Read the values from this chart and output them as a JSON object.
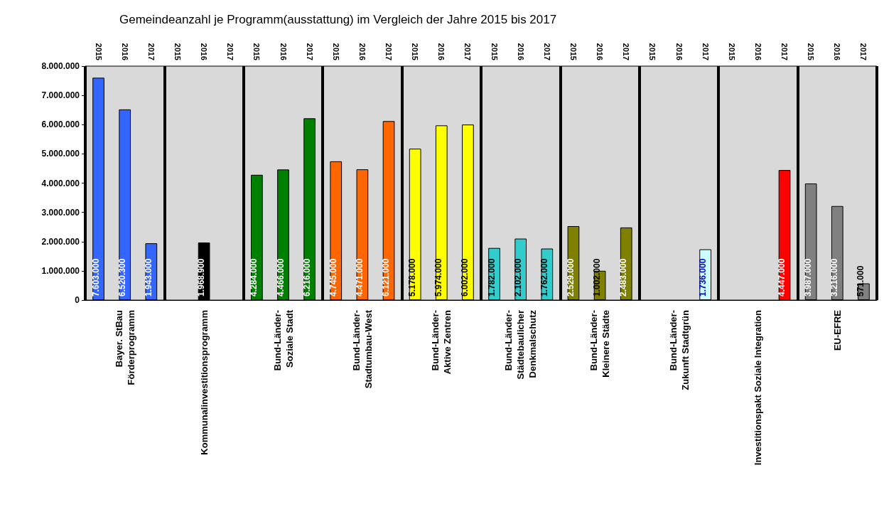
{
  "chart_data": {
    "type": "bar",
    "title": "Gemeindeanzahl je Programm(ausstattung) im Vergleich der Jahre 2015 bis 2017",
    "categories": [
      "Bayer. StBau\nFörderprogramm",
      "Kommunalinvestitionsprogramm",
      "Bund-Länder-\nSoziale Stadt",
      "Bund-Länder-\nStadtumbau-West",
      "Bund-Länder-\nAktive Zentren",
      "Bund-Länder-\nStädtebaulicher\nDenkmalschutz",
      "Bund-Länder-\nKleinere Städte",
      "Bund-Länder-\nZukunft Stadtgrün",
      "Investitionspakt Soziale Integration",
      "EU-EFRE"
    ],
    "series": [
      {
        "name": "2015",
        "colors": [
          "#3366ff",
          "#000000",
          "#008000",
          "#ff6600",
          "#ffff00",
          "#33cccc",
          "#808000",
          "#ccffff",
          "#ff0000",
          "#808080"
        ],
        "values": [
          7603000,
          null,
          4284000,
          4745000,
          5178000,
          1782000,
          2529000,
          null,
          null,
          3987000
        ],
        "value_labels": [
          "7.603.000",
          null,
          "4.284.000",
          "4.745.000",
          "5.178.000",
          "1.782.000",
          "2.529.000",
          null,
          null,
          "3.987.000"
        ]
      },
      {
        "name": "2016",
        "colors": [
          "#3366ff",
          "#000000",
          "#008000",
          "#ff6600",
          "#ffff00",
          "#33cccc",
          "#808000",
          "#ccffff",
          "#ff0000",
          "#808080"
        ],
        "values": [
          6520300,
          1968900,
          4466000,
          4471000,
          5974000,
          2102000,
          1002000,
          null,
          null,
          3216000
        ],
        "value_labels": [
          "6.520.300",
          "1.968.900",
          "4.466.000",
          "4.471.000",
          "5.974.000",
          "2.102.000",
          "1.002.000",
          null,
          null,
          "3.216.000"
        ]
      },
      {
        "name": "2017",
        "colors": [
          "#3366ff",
          "#000000",
          "#008000",
          "#ff6600",
          "#ffff00",
          "#33cccc",
          "#808000",
          "#ccffff",
          "#ff0000",
          "#808080"
        ],
        "values": [
          1943000,
          null,
          6216000,
          6121000,
          6002000,
          1762000,
          2483000,
          1736000,
          4447000,
          571000
        ],
        "value_labels": [
          "1.943.000",
          null,
          "6.216.000",
          "6.121.000",
          "6.002.000",
          "1.762.000",
          "2.483.000",
          "1.736.000",
          "4.447.000",
          "571.000"
        ]
      }
    ],
    "ylim": [
      0,
      8000000
    ],
    "yticks": [
      {
        "value": 0,
        "label": "0"
      },
      {
        "value": 1000000,
        "label": "1.000.000"
      },
      {
        "value": 2000000,
        "label": "2.000.000"
      },
      {
        "value": 3000000,
        "label": "3.000.000"
      },
      {
        "value": 4000000,
        "label": "4.000.000"
      },
      {
        "value": 5000000,
        "label": "5.000.000"
      },
      {
        "value": 6000000,
        "label": "6.000.000"
      },
      {
        "value": 7000000,
        "label": "7.000.000"
      },
      {
        "value": 8000000,
        "label": "8.000.000"
      }
    ],
    "grid": "x"
  }
}
